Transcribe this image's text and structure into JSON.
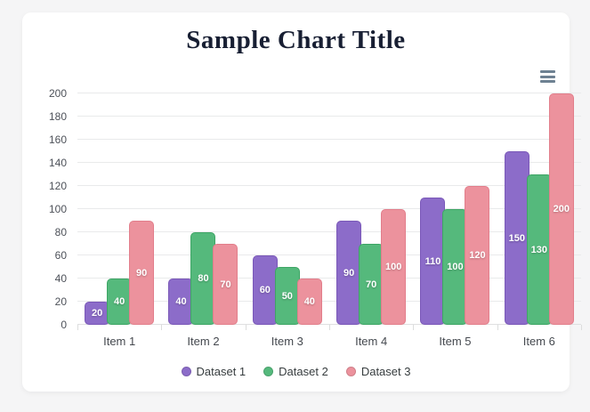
{
  "chart_data": {
    "type": "bar",
    "title": "Sample Chart Title",
    "categories": [
      "Item 1",
      "Item 2",
      "Item 3",
      "Item 4",
      "Item 5",
      "Item 6"
    ],
    "series": [
      {
        "name": "Dataset 1",
        "color": "#8c6cc9",
        "border_color": "#7a58b8",
        "values": [
          20,
          40,
          60,
          90,
          110,
          150
        ]
      },
      {
        "name": "Dataset 2",
        "color": "#55b97c",
        "border_color": "#3ea565",
        "values": [
          40,
          80,
          50,
          70,
          100,
          130
        ]
      },
      {
        "name": "Dataset 3",
        "color": "#ec929d",
        "border_color": "#e27e8b",
        "values": [
          90,
          70,
          40,
          100,
          120,
          200
        ]
      }
    ],
    "ylim": [
      0,
      200
    ],
    "yticks": [
      0,
      20,
      40,
      60,
      80,
      100,
      120,
      140,
      160,
      180,
      200
    ],
    "grid": true,
    "datalabels": true,
    "legend_position": "bottom"
  },
  "colors": {
    "page_background": "#f5f5f6",
    "card_background": "#ffffff",
    "title": "#181f33",
    "axis_text": "#4d5159",
    "gridline": "#e9eaeb",
    "menu_icon": "#6e8192"
  }
}
